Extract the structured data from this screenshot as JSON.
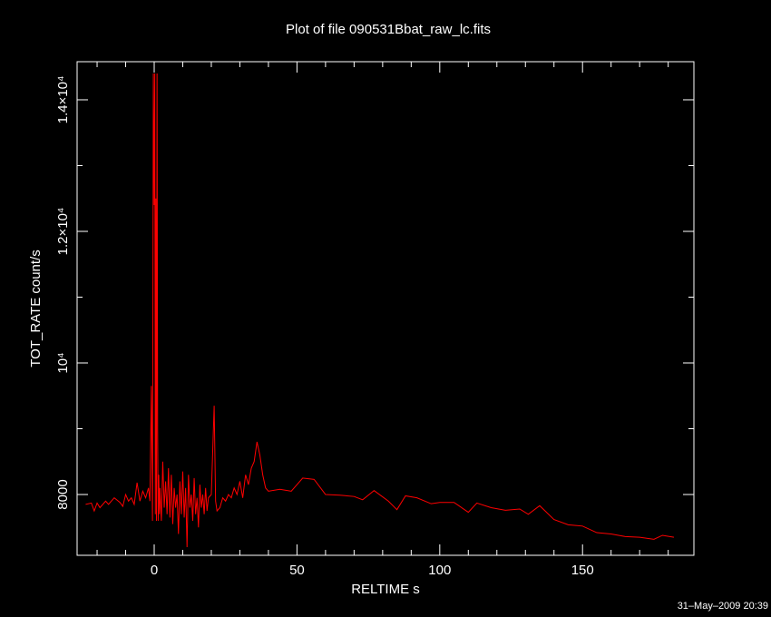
{
  "chart_data": {
    "type": "line",
    "title": "Plot of file 090531Bbat_raw_lc.fits",
    "x_label": "RELTIME  s",
    "y_label": "TOT_RATE  count/s",
    "timestamp": "31–May–2009 20:39",
    "xlim": [
      -27,
      189
    ],
    "ylim": [
      7076,
      14579
    ],
    "xticks": [
      0,
      50,
      100,
      150
    ],
    "xminorticks": [
      -20,
      -10,
      10,
      20,
      30,
      40,
      60,
      70,
      80,
      90,
      110,
      120,
      130,
      140,
      160,
      170,
      180
    ],
    "yticks": [
      8000,
      {
        "value": 10000,
        "label": "10⁴"
      },
      {
        "value": 12000,
        "label": "1.2×10⁴"
      },
      {
        "value": 14000,
        "label": "1.4×10⁴"
      }
    ],
    "yminorticks": [
      9000,
      11000,
      13000
    ],
    "series": [
      {
        "color": "#ff0000",
        "x": [
          -24,
          -22,
          -21,
          -20,
          -19,
          -17,
          -16,
          -14,
          -12,
          -11,
          -10,
          -9,
          -8,
          -7,
          -6,
          -5,
          -4,
          -3,
          -2,
          -1.5,
          -1,
          -0.6,
          -0.3,
          0,
          0.2,
          0.4,
          0.6,
          0.8,
          1,
          1.2,
          1.4,
          1.6,
          1.8,
          2,
          2.5,
          3,
          3.5,
          4,
          4.5,
          5,
          5.5,
          6,
          6.5,
          7,
          7.5,
          8,
          8.5,
          9,
          9.5,
          10,
          10.5,
          11,
          11.5,
          12,
          12.5,
          13,
          13.5,
          14,
          14.5,
          15,
          15.5,
          16,
          16.5,
          17,
          17.5,
          18,
          18.5,
          19,
          20,
          21,
          21.5,
          22,
          23,
          24,
          25,
          26,
          27,
          28,
          29,
          30,
          31,
          32,
          33,
          34,
          35,
          36,
          37,
          38,
          39,
          40,
          44,
          48,
          52,
          56,
          60,
          65,
          70,
          73,
          77,
          82,
          85,
          88,
          92,
          97,
          100,
          105,
          110,
          113,
          118,
          123,
          128,
          131,
          135,
          140,
          145,
          150,
          155,
          160,
          165,
          170,
          175,
          178,
          182
        ],
        "values": [
          7850,
          7870,
          7750,
          7870,
          7800,
          7900,
          7850,
          7950,
          7880,
          7820,
          8000,
          7900,
          7950,
          7850,
          8180,
          7900,
          8050,
          7950,
          8100,
          7900,
          9650,
          7600,
          14400,
          12400,
          14400,
          7700,
          12500,
          7600,
          14400,
          9000,
          7600,
          8300,
          7700,
          8100,
          7600,
          8500,
          7800,
          8200,
          7700,
          8400,
          7650,
          8300,
          7550,
          8100,
          7800,
          8000,
          7400,
          8200,
          7700,
          8350,
          7650,
          8100,
          7200,
          8300,
          7800,
          8000,
          7600,
          8250,
          7700,
          7950,
          7500,
          8150,
          7800,
          8000,
          7700,
          8100,
          7750,
          7950,
          8000,
          9350,
          7900,
          7750,
          7800,
          7950,
          7900,
          8000,
          7950,
          8100,
          8000,
          8200,
          7950,
          8300,
          8150,
          8400,
          8500,
          8800,
          8600,
          8300,
          8100,
          8050,
          8080,
          8050,
          8250,
          8230,
          8000,
          7990,
          7970,
          7920,
          8060,
          7900,
          7770,
          7980,
          7950,
          7860,
          7880,
          7880,
          7730,
          7870,
          7800,
          7760,
          7780,
          7700,
          7830,
          7620,
          7540,
          7520,
          7420,
          7400,
          7360,
          7350,
          7320,
          7380,
          7350
        ]
      }
    ]
  }
}
